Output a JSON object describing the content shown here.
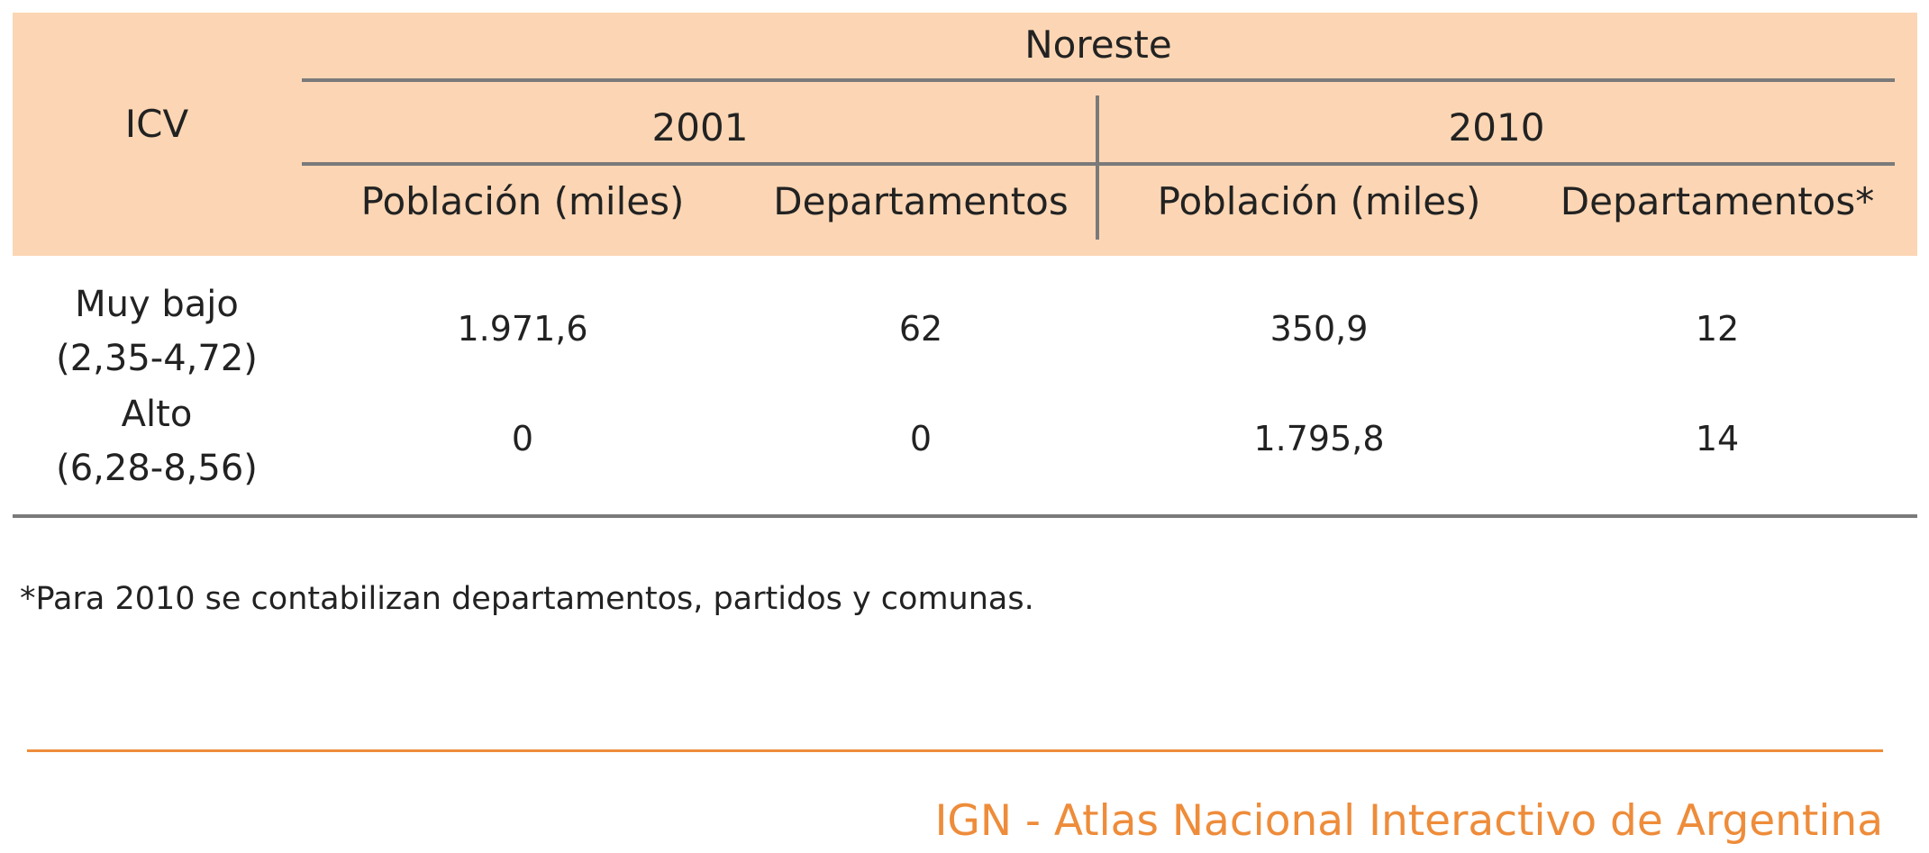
{
  "table": {
    "row_header": "ICV",
    "region": "Noreste",
    "years": [
      "2001",
      "2010"
    ],
    "columns": [
      "Población (miles)",
      "Departamentos",
      "Población (miles)",
      "Departamentos*"
    ],
    "rows": [
      {
        "label_line1": "Muy bajo",
        "label_line2": "(2,35-4,72)",
        "values": [
          "1.971,6",
          "62",
          "350,9",
          "12"
        ]
      },
      {
        "label_line1": "Alto",
        "label_line2": "(6,28-8,56)",
        "values": [
          "0",
          "0",
          "1.795,8",
          "14"
        ]
      }
    ]
  },
  "footnote": "*Para 2010 se contabilizan departamentos, partidos y comunas.",
  "footer": {
    "credit": "IGN - Atlas Nacional Interactivo de Argentina"
  },
  "colors": {
    "header_background": "#fcd6b4",
    "rule": "#7a7a7a",
    "accent": "#ee8c3a",
    "text": "#222222"
  }
}
